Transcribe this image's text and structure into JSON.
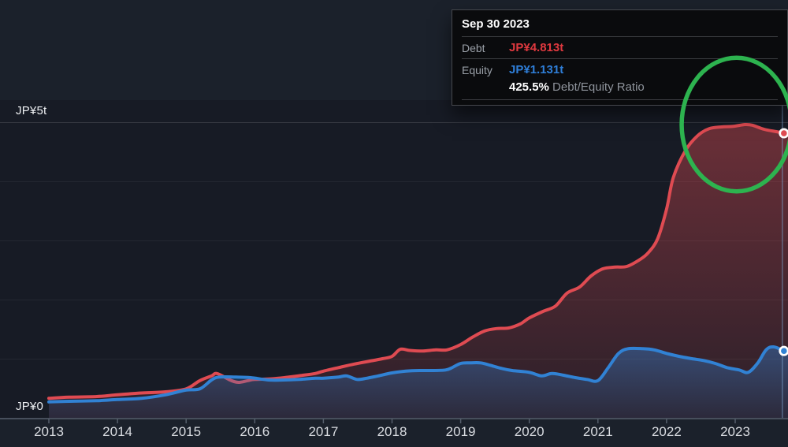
{
  "y_axis": {
    "labels": [
      {
        "text": "JP¥5t",
        "value": 5
      },
      {
        "text": "JP¥0",
        "value": 0
      }
    ]
  },
  "x_axis": {
    "labels": [
      "2013",
      "2014",
      "2015",
      "2016",
      "2017",
      "2018",
      "2019",
      "2020",
      "2021",
      "2022",
      "2023"
    ]
  },
  "tooltip": {
    "date": "Sep 30 2023",
    "debt_label": "Debt",
    "debt_value": "JP¥4.813t",
    "equity_label": "Equity",
    "equity_value": "JP¥1.131t",
    "ratio_value": "425.5%",
    "ratio_label": "Debt/Equity Ratio"
  },
  "colors": {
    "background": "#1b212b",
    "debt_line": "#df4b52",
    "equity_line": "#3182d4",
    "debt_value_text": "#e0393f",
    "equity_value_text": "#2f7fd9",
    "annotation_circle": "#2db34f",
    "axis_line": "#565f6c",
    "axis_text": "#d9dce1",
    "gridline": "rgba(255,255,255,0.06)",
    "gridline_top": "rgba(255,255,255,0.13)",
    "hover_line": "rgba(125,165,210,0.5)"
  },
  "chart_data": {
    "type": "area",
    "title": "",
    "y_unit": "JP¥ trillion",
    "ylim": [
      0,
      5
    ],
    "x_range": [
      2013,
      2023.77
    ],
    "grid": "horizontal, 1t spacing, labeled at 0 and 5t",
    "legend": "none (values shown in tooltip)",
    "series": [
      {
        "name": "Debt",
        "color": "#df4b52",
        "points": [
          [
            2013.0,
            0.33
          ],
          [
            2013.3,
            0.35
          ],
          [
            2013.7,
            0.36
          ],
          [
            2014.0,
            0.39
          ],
          [
            2014.35,
            0.42
          ],
          [
            2014.7,
            0.44
          ],
          [
            2015.0,
            0.49
          ],
          [
            2015.2,
            0.63
          ],
          [
            2015.37,
            0.71
          ],
          [
            2015.45,
            0.75
          ],
          [
            2015.64,
            0.64
          ],
          [
            2015.76,
            0.6
          ],
          [
            2015.9,
            0.63
          ],
          [
            2016.0,
            0.65
          ],
          [
            2016.25,
            0.66
          ],
          [
            2016.5,
            0.69
          ],
          [
            2016.7,
            0.72
          ],
          [
            2016.88,
            0.75
          ],
          [
            2017.0,
            0.79
          ],
          [
            2017.22,
            0.85
          ],
          [
            2017.45,
            0.91
          ],
          [
            2017.68,
            0.96
          ],
          [
            2017.86,
            1.0
          ],
          [
            2018.0,
            1.04
          ],
          [
            2018.12,
            1.16
          ],
          [
            2018.26,
            1.14
          ],
          [
            2018.45,
            1.13
          ],
          [
            2018.64,
            1.15
          ],
          [
            2018.8,
            1.15
          ],
          [
            2019.0,
            1.24
          ],
          [
            2019.18,
            1.37
          ],
          [
            2019.35,
            1.47
          ],
          [
            2019.52,
            1.51
          ],
          [
            2019.7,
            1.52
          ],
          [
            2019.87,
            1.59
          ],
          [
            2020.0,
            1.69
          ],
          [
            2020.2,
            1.8
          ],
          [
            2020.38,
            1.89
          ],
          [
            2020.55,
            2.11
          ],
          [
            2020.73,
            2.21
          ],
          [
            2020.9,
            2.4
          ],
          [
            2021.07,
            2.52
          ],
          [
            2021.25,
            2.55
          ],
          [
            2021.42,
            2.56
          ],
          [
            2021.6,
            2.67
          ],
          [
            2021.73,
            2.79
          ],
          [
            2021.87,
            3.03
          ],
          [
            2022.0,
            3.53
          ],
          [
            2022.1,
            4.07
          ],
          [
            2022.28,
            4.53
          ],
          [
            2022.45,
            4.77
          ],
          [
            2022.62,
            4.89
          ],
          [
            2022.8,
            4.92
          ],
          [
            2022.97,
            4.93
          ],
          [
            2023.14,
            4.96
          ],
          [
            2023.25,
            4.95
          ],
          [
            2023.42,
            4.88
          ],
          [
            2023.6,
            4.84
          ],
          [
            2023.71,
            4.813
          ]
        ]
      },
      {
        "name": "Equity",
        "color": "#3182d4",
        "points": [
          [
            2013.0,
            0.27
          ],
          [
            2013.3,
            0.28
          ],
          [
            2013.7,
            0.29
          ],
          [
            2014.0,
            0.31
          ],
          [
            2014.35,
            0.33
          ],
          [
            2014.7,
            0.39
          ],
          [
            2015.0,
            0.47
          ],
          [
            2015.2,
            0.49
          ],
          [
            2015.37,
            0.64
          ],
          [
            2015.48,
            0.69
          ],
          [
            2015.73,
            0.69
          ],
          [
            2015.94,
            0.68
          ],
          [
            2016.2,
            0.64
          ],
          [
            2016.42,
            0.64
          ],
          [
            2016.65,
            0.65
          ],
          [
            2016.88,
            0.67
          ],
          [
            2017.0,
            0.67
          ],
          [
            2017.22,
            0.69
          ],
          [
            2017.34,
            0.71
          ],
          [
            2017.49,
            0.65
          ],
          [
            2017.63,
            0.67
          ],
          [
            2017.8,
            0.71
          ],
          [
            2018.0,
            0.76
          ],
          [
            2018.2,
            0.79
          ],
          [
            2018.4,
            0.8
          ],
          [
            2018.6,
            0.8
          ],
          [
            2018.78,
            0.81
          ],
          [
            2018.86,
            0.84
          ],
          [
            2019.0,
            0.92
          ],
          [
            2019.14,
            0.93
          ],
          [
            2019.29,
            0.93
          ],
          [
            2019.43,
            0.89
          ],
          [
            2019.58,
            0.84
          ],
          [
            2019.75,
            0.8
          ],
          [
            2020.0,
            0.77
          ],
          [
            2020.18,
            0.71
          ],
          [
            2020.33,
            0.75
          ],
          [
            2020.5,
            0.72
          ],
          [
            2020.67,
            0.68
          ],
          [
            2020.84,
            0.65
          ],
          [
            2021.0,
            0.63
          ],
          [
            2021.15,
            0.85
          ],
          [
            2021.3,
            1.09
          ],
          [
            2021.44,
            1.17
          ],
          [
            2021.65,
            1.17
          ],
          [
            2021.82,
            1.15
          ],
          [
            2022.0,
            1.09
          ],
          [
            2022.18,
            1.04
          ],
          [
            2022.37,
            1.0
          ],
          [
            2022.54,
            0.97
          ],
          [
            2022.71,
            0.92
          ],
          [
            2022.88,
            0.85
          ],
          [
            2023.06,
            0.81
          ],
          [
            2023.19,
            0.77
          ],
          [
            2023.33,
            0.93
          ],
          [
            2023.45,
            1.15
          ],
          [
            2023.56,
            1.2
          ],
          [
            2023.71,
            1.131
          ]
        ]
      }
    ],
    "hover": {
      "x": 2023.71,
      "date": "Sep 30 2023",
      "debt": "JP¥4.813t",
      "equity": "JP¥1.131t",
      "debt_equity_ratio": "425.5%"
    },
    "annotation_circle": {
      "x": 2023.02,
      "y_value": 4.96,
      "rx_years": 0.8,
      "ry_value": 1.13
    }
  }
}
